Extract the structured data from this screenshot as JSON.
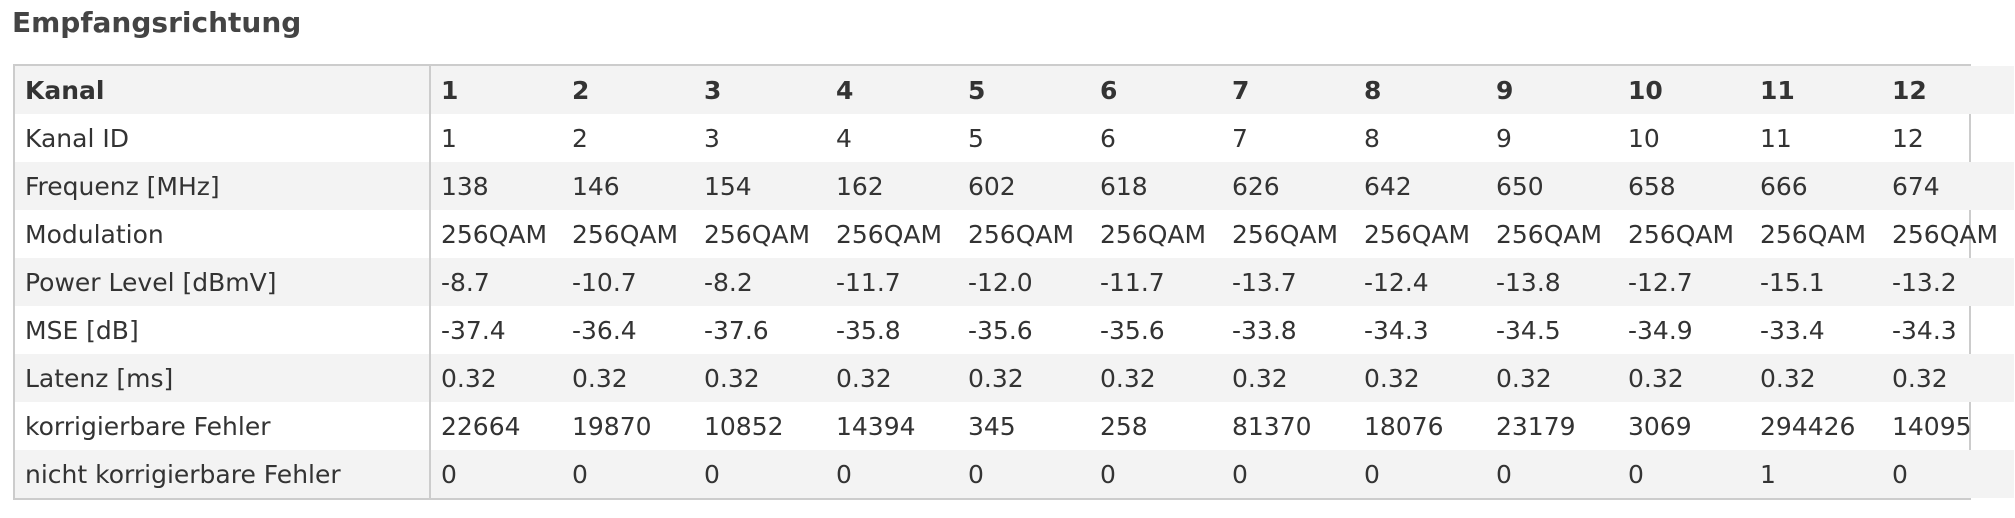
{
  "header": {
    "title": "Empfangsrichtung"
  },
  "table": {
    "columns": [
      "Kanal",
      "1",
      "2",
      "3",
      "4",
      "5",
      "6",
      "7",
      "8",
      "9",
      "10",
      "11",
      "12"
    ],
    "rows": [
      [
        "Kanal ID",
        "1",
        "2",
        "3",
        "4",
        "5",
        "6",
        "7",
        "8",
        "9",
        "10",
        "11",
        "12"
      ],
      [
        "Frequenz [MHz]",
        "138",
        "146",
        "154",
        "162",
        "602",
        "618",
        "626",
        "642",
        "650",
        "658",
        "666",
        "674"
      ],
      [
        "Modulation",
        "256QAM",
        "256QAM",
        "256QAM",
        "256QAM",
        "256QAM",
        "256QAM",
        "256QAM",
        "256QAM",
        "256QAM",
        "256QAM",
        "256QAM",
        "256QAM"
      ],
      [
        "Power Level [dBmV]",
        "-8.7",
        "-10.7",
        "-8.2",
        "-11.7",
        "-12.0",
        "-11.7",
        "-13.7",
        "-12.4",
        "-13.8",
        "-12.7",
        "-15.1",
        "-13.2"
      ],
      [
        "MSE [dB]",
        "-37.4",
        "-36.4",
        "-37.6",
        "-35.8",
        "-35.6",
        "-35.6",
        "-33.8",
        "-34.3",
        "-34.5",
        "-34.9",
        "-33.4",
        "-34.3"
      ],
      [
        "Latenz [ms]",
        "0.32",
        "0.32",
        "0.32",
        "0.32",
        "0.32",
        "0.32",
        "0.32",
        "0.32",
        "0.32",
        "0.32",
        "0.32",
        "0.32"
      ],
      [
        "korrigierbare Fehler",
        "22664",
        "19870",
        "10852",
        "14394",
        "345",
        "258",
        "81370",
        "18076",
        "23179",
        "3069",
        "294426",
        "14095"
      ],
      [
        "nicht korrigierbare Fehler",
        "0",
        "0",
        "0",
        "0",
        "0",
        "0",
        "0",
        "0",
        "0",
        "0",
        "1",
        "0"
      ]
    ]
  }
}
